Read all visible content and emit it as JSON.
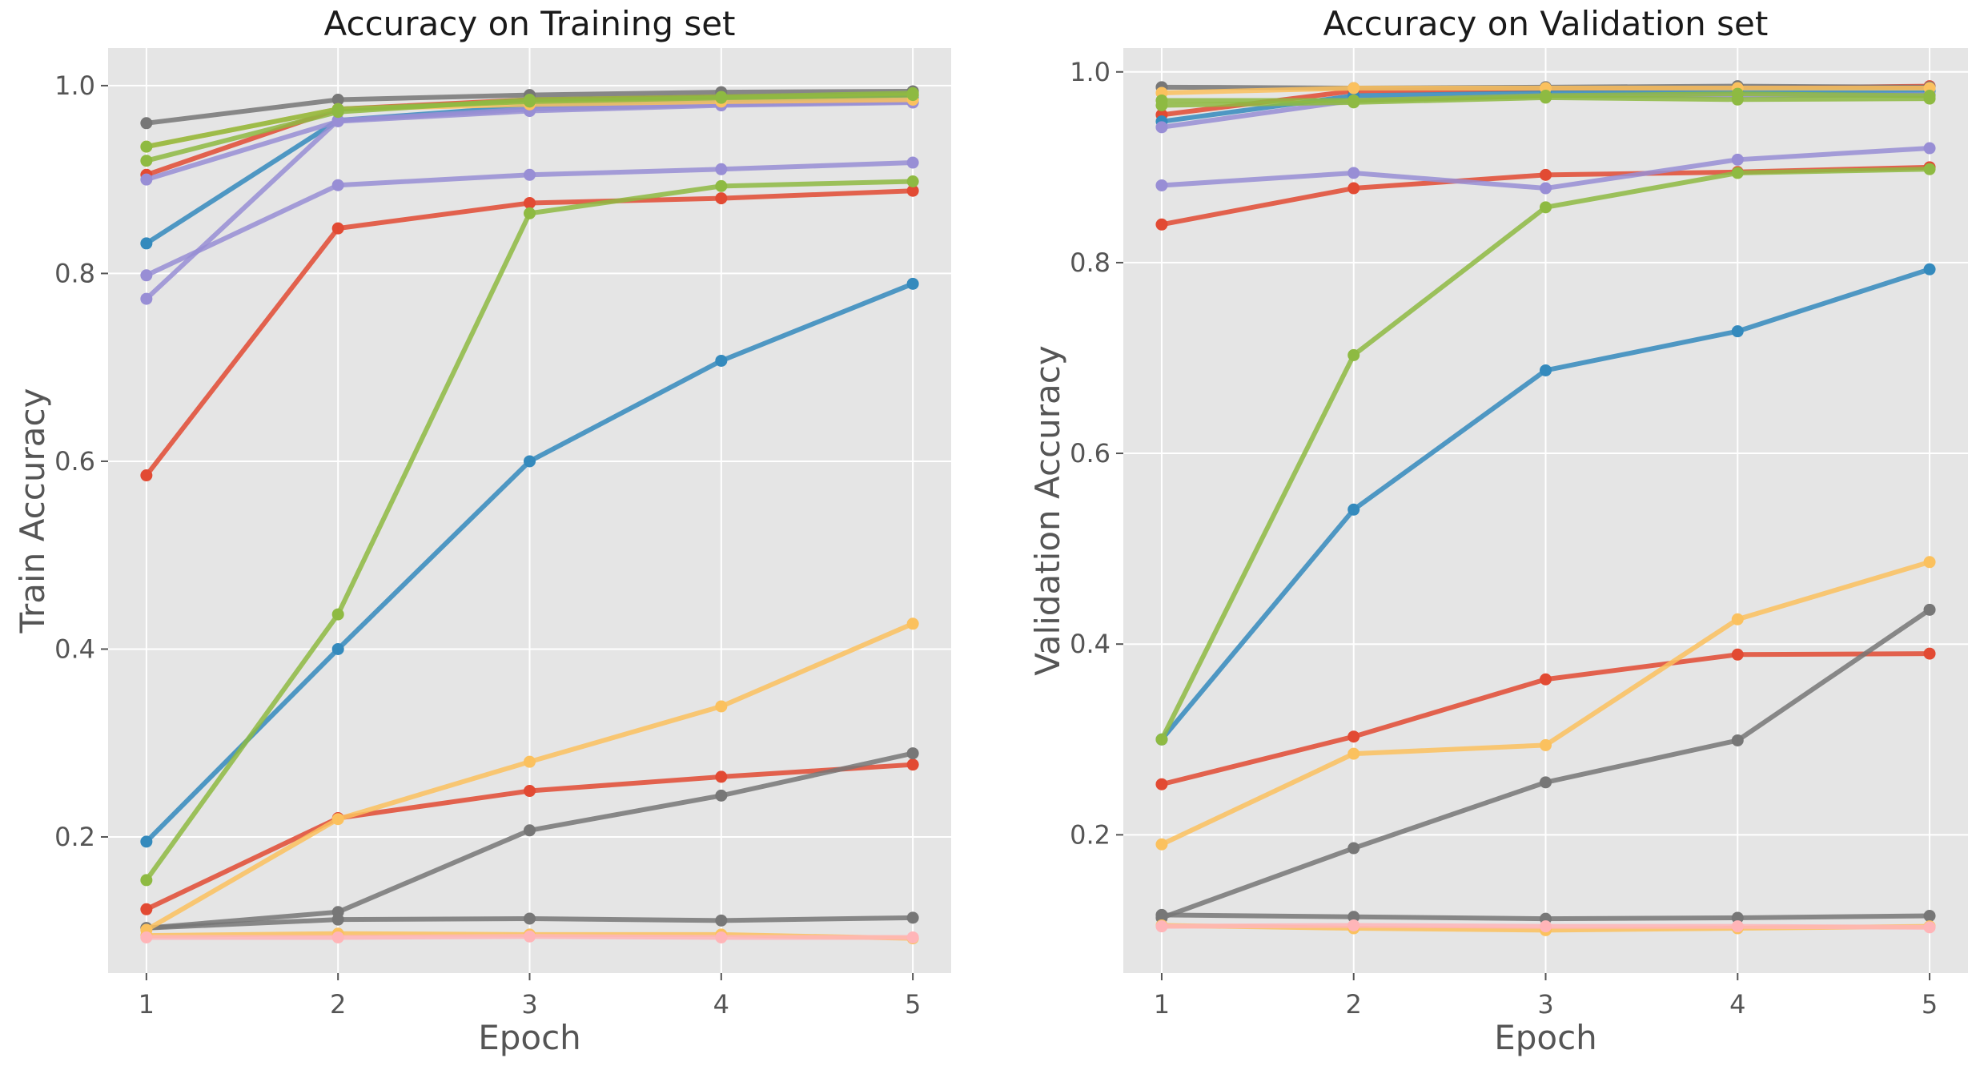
{
  "chart_data": [
    {
      "type": "line",
      "title": "Accuracy on Training set",
      "xlabel": "Epoch",
      "ylabel": "Train Accuracy",
      "x": [
        1,
        2,
        3,
        4,
        5
      ],
      "xticks": [
        "1",
        "2",
        "3",
        "4",
        "5"
      ],
      "yticks": [
        "0.2",
        "0.4",
        "0.6",
        "0.8",
        "1.0"
      ],
      "xlim": [
        0.8,
        5.2
      ],
      "ylim": [
        0.055,
        1.04
      ],
      "grid": true,
      "series": [
        {
          "color": "#E24A33",
          "values": [
            0.905,
            0.975,
            0.985,
            0.988,
            0.99
          ]
        },
        {
          "color": "#E24A33",
          "values": [
            0.585,
            0.848,
            0.875,
            0.88,
            0.888
          ]
        },
        {
          "color": "#E24A33",
          "values": [
            0.123,
            0.22,
            0.249,
            0.264,
            0.277
          ]
        },
        {
          "color": "#348ABD",
          "values": [
            0.832,
            0.963,
            0.978,
            0.984,
            0.987
          ]
        },
        {
          "color": "#348ABD",
          "values": [
            0.195,
            0.4,
            0.6,
            0.707,
            0.789
          ]
        },
        {
          "color": "#988ED5",
          "values": [
            0.9,
            0.962,
            0.973,
            0.979,
            0.982
          ]
        },
        {
          "color": "#988ED5",
          "values": [
            0.798,
            0.894,
            0.905,
            0.911,
            0.918
          ]
        },
        {
          "color": "#988ED5",
          "values": [
            0.773,
            0.963,
            0.975,
            0.98,
            0.983
          ]
        },
        {
          "color": "#777777",
          "values": [
            0.96,
            0.985,
            0.99,
            0.993,
            0.994
          ]
        },
        {
          "color": "#777777",
          "values": [
            0.103,
            0.12,
            0.207,
            0.244,
            0.289
          ]
        },
        {
          "color": "#777777",
          "values": [
            0.103,
            0.112,
            0.113,
            0.111,
            0.114
          ]
        },
        {
          "color": "#FBC15E",
          "values": [
            0.935,
            0.975,
            0.98,
            0.983,
            0.985
          ]
        },
        {
          "color": "#FBC15E",
          "values": [
            0.101,
            0.219,
            0.28,
            0.339,
            0.427
          ]
        },
        {
          "color": "#FBC15E",
          "values": [
            0.095,
            0.097,
            0.096,
            0.096,
            0.092
          ]
        },
        {
          "color": "#8EBA42",
          "values": [
            0.92,
            0.972,
            0.985,
            0.988,
            0.992
          ]
        },
        {
          "color": "#8EBA42",
          "values": [
            0.935,
            0.975,
            0.983,
            0.987,
            0.99
          ]
        },
        {
          "color": "#8EBA42",
          "values": [
            0.154,
            0.437,
            0.864,
            0.893,
            0.898
          ]
        },
        {
          "color": "#FFB5B8",
          "values": [
            0.093,
            0.093,
            0.094,
            0.093,
            0.093
          ]
        }
      ]
    },
    {
      "type": "line",
      "title": "Accuracy on Validation set",
      "xlabel": "Epoch",
      "ylabel": "Validation Accuracy",
      "x": [
        1,
        2,
        3,
        4,
        5
      ],
      "xticks": [
        "1",
        "2",
        "3",
        "4",
        "5"
      ],
      "yticks": [
        "0.2",
        "0.4",
        "0.6",
        "0.8",
        "1.0"
      ],
      "xlim": [
        0.8,
        5.2
      ],
      "ylim": [
        0.055,
        1.025
      ],
      "grid": true,
      "series": [
        {
          "color": "#E24A33",
          "values": [
            0.955,
            0.98,
            0.982,
            0.983,
            0.985
          ]
        },
        {
          "color": "#E24A33",
          "values": [
            0.84,
            0.878,
            0.892,
            0.895,
            0.9
          ]
        },
        {
          "color": "#E24A33",
          "values": [
            0.253,
            0.303,
            0.363,
            0.389,
            0.39
          ]
        },
        {
          "color": "#348ABD",
          "values": [
            0.948,
            0.975,
            0.978,
            0.98,
            0.98
          ]
        },
        {
          "color": "#348ABD",
          "values": [
            0.3,
            0.541,
            0.687,
            0.728,
            0.793
          ]
        },
        {
          "color": "#988ED5",
          "values": [
            0.942,
            0.97,
            0.975,
            0.975,
            0.976
          ]
        },
        {
          "color": "#988ED5",
          "values": [
            0.881,
            0.894,
            0.878,
            0.908,
            0.92
          ]
        },
        {
          "color": "#777777",
          "values": [
            0.984,
            0.983,
            0.984,
            0.985,
            0.984
          ]
        },
        {
          "color": "#777777",
          "values": [
            0.113,
            0.186,
            0.255,
            0.299,
            0.436
          ]
        },
        {
          "color": "#777777",
          "values": [
            0.116,
            0.114,
            0.112,
            0.113,
            0.115
          ]
        },
        {
          "color": "#FBC15E",
          "values": [
            0.978,
            0.983,
            0.983,
            0.983,
            0.983
          ]
        },
        {
          "color": "#FBC15E",
          "values": [
            0.19,
            0.285,
            0.294,
            0.426,
            0.486
          ]
        },
        {
          "color": "#FBC15E",
          "values": [
            0.105,
            0.102,
            0.1,
            0.102,
            0.104
          ]
        },
        {
          "color": "#8EBA42",
          "values": [
            0.965,
            0.968,
            0.973,
            0.971,
            0.972
          ]
        },
        {
          "color": "#8EBA42",
          "values": [
            0.97,
            0.97,
            0.975,
            0.977,
            0.975
          ]
        },
        {
          "color": "#8EBA42",
          "values": [
            0.3,
            0.703,
            0.858,
            0.894,
            0.898
          ]
        },
        {
          "color": "#FFB5B8",
          "values": [
            0.104,
            0.105,
            0.104,
            0.104,
            0.103
          ]
        }
      ]
    }
  ]
}
